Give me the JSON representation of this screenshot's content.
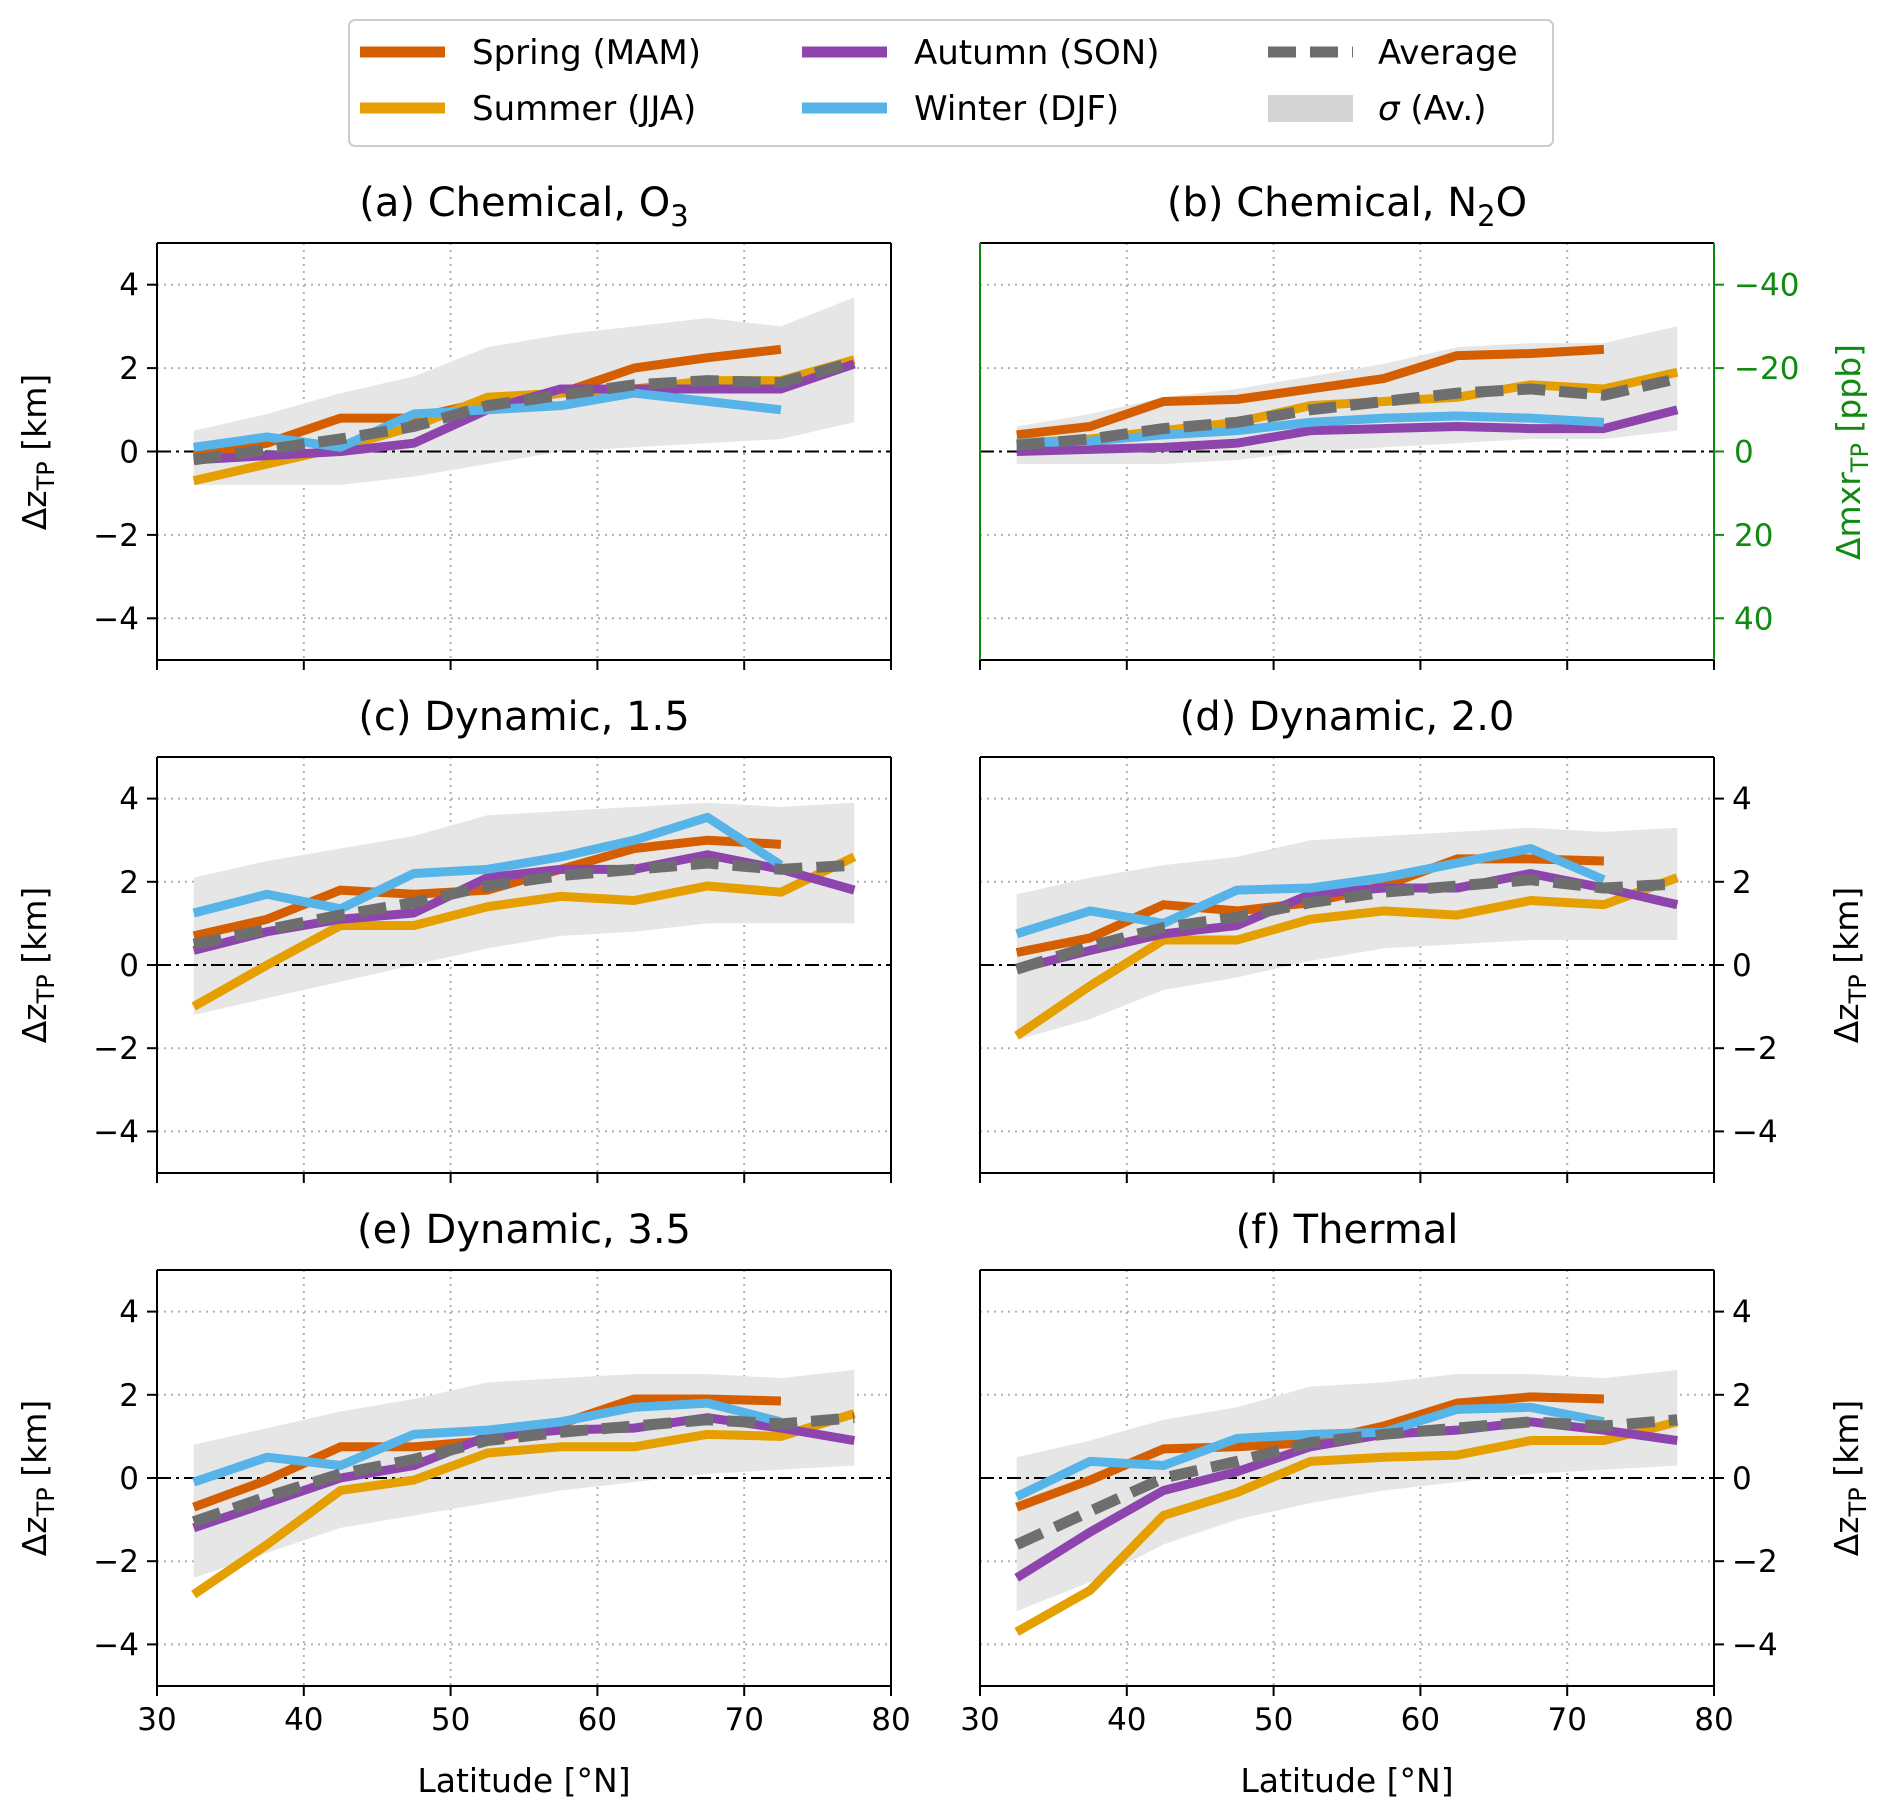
{
  "colors": {
    "spring": "#d55e00",
    "summer": "#e69f00",
    "autumn": "#8e44ad",
    "winter": "#56b4e9",
    "average": "#6e6e6e",
    "sigma": "#e6e6e6",
    "twin_axis": "#108a10"
  },
  "legend": {
    "spring": "Spring (MAM)",
    "summer": "Summer (JJA)",
    "autumn": "Autumn (SON)",
    "winter": "Winter (DJF)",
    "average": "Average",
    "sigma_symbol": "σ",
    "sigma_rest": " (Av.)"
  },
  "axes_text": {
    "x_label": "Latitude [°N]",
    "y_label_main": "Δz",
    "y_label_sub": "TP",
    "y_label_unit": " [km]",
    "twin_label_main": "Δmxr",
    "twin_label_sub": "TP",
    "twin_label_unit": " [ppb]"
  },
  "chart_data": [
    {
      "id": "a",
      "type": "line",
      "title": "(a) Chemical, O",
      "title_sub": "3",
      "xlim": [
        30,
        80
      ],
      "ylim": [
        -5,
        5
      ],
      "xticks": [
        30,
        40,
        50,
        60,
        70,
        80
      ],
      "yticks": [
        -4,
        -2,
        0,
        2,
        4
      ],
      "x": [
        32.5,
        37.5,
        42.5,
        47.5,
        52.5,
        57.5,
        62.5,
        67.5,
        72.5,
        77.5
      ],
      "series": [
        {
          "name": "Spring (MAM)",
          "key": "spring",
          "values": [
            -0.1,
            0.2,
            0.8,
            0.8,
            1.2,
            1.4,
            2.0,
            2.25,
            2.45,
            null
          ]
        },
        {
          "name": "Summer (JJA)",
          "key": "summer",
          "values": [
            -0.7,
            -0.3,
            0.1,
            0.6,
            1.3,
            1.4,
            1.5,
            1.7,
            1.7,
            2.2
          ]
        },
        {
          "name": "Autumn (SON)",
          "key": "autumn",
          "values": [
            -0.2,
            -0.1,
            0.0,
            0.2,
            1.0,
            1.5,
            1.5,
            1.5,
            1.5,
            2.1
          ]
        },
        {
          "name": "Winter (DJF)",
          "key": "winter",
          "values": [
            0.1,
            0.35,
            0.1,
            0.9,
            1.0,
            1.1,
            1.4,
            1.2,
            1.0,
            null
          ]
        },
        {
          "name": "Average",
          "key": "average",
          "values": [
            -0.2,
            0.05,
            0.3,
            0.6,
            1.1,
            1.35,
            1.6,
            1.7,
            1.65,
            2.15
          ]
        }
      ],
      "sigma_band": {
        "lower": [
          -0.8,
          -0.8,
          -0.8,
          -0.6,
          -0.3,
          0.0,
          0.1,
          0.2,
          0.3,
          0.7
        ],
        "upper": [
          0.5,
          0.9,
          1.4,
          1.8,
          2.5,
          2.8,
          3.0,
          3.2,
          3.0,
          3.7
        ]
      }
    },
    {
      "id": "b",
      "type": "line",
      "title": "(b) Chemical, N",
      "title_sub": "2",
      "title_tail": "O",
      "xlim": [
        30,
        80
      ],
      "ylim": [
        -5,
        5
      ],
      "xticks": [
        30,
        40,
        50,
        60,
        70,
        80
      ],
      "left_ticks_hidden": true,
      "twin_axis": {
        "label": "Δmxr TP [ppb]",
        "ylim": [
          50,
          -50
        ],
        "ticks": [
          -40,
          -20,
          0,
          20,
          40
        ],
        "tick_labels": [
          "−40",
          "−20",
          "0",
          "20",
          "40"
        ]
      },
      "x": [
        32.5,
        37.5,
        42.5,
        47.5,
        52.5,
        57.5,
        62.5,
        67.5,
        72.5,
        77.5
      ],
      "series": [
        {
          "name": "Spring (MAM)",
          "key": "spring",
          "values": [
            0.4,
            0.6,
            1.2,
            1.25,
            1.5,
            1.75,
            2.3,
            2.35,
            2.45,
            null
          ]
        },
        {
          "name": "Summer (JJA)",
          "key": "summer",
          "values": [
            0.2,
            0.3,
            0.5,
            0.7,
            1.1,
            1.2,
            1.3,
            1.6,
            1.5,
            1.9
          ]
        },
        {
          "name": "Autumn (SON)",
          "key": "autumn",
          "values": [
            0.0,
            0.05,
            0.1,
            0.2,
            0.5,
            0.55,
            0.6,
            0.55,
            0.55,
            1.0
          ]
        },
        {
          "name": "Winter (DJF)",
          "key": "winter",
          "values": [
            0.2,
            0.25,
            0.4,
            0.5,
            0.7,
            0.8,
            0.85,
            0.8,
            0.7,
            null
          ]
        },
        {
          "name": "Average",
          "key": "average",
          "values": [
            0.15,
            0.3,
            0.55,
            0.7,
            1.0,
            1.2,
            1.4,
            1.5,
            1.35,
            1.75
          ]
        }
      ],
      "sigma_band": {
        "lower": [
          -0.3,
          -0.3,
          -0.3,
          -0.2,
          0.0,
          0.1,
          0.2,
          0.3,
          0.3,
          0.5
        ],
        "upper": [
          0.6,
          0.9,
          1.3,
          1.5,
          1.8,
          2.1,
          2.5,
          2.6,
          2.6,
          3.0
        ]
      }
    },
    {
      "id": "c",
      "type": "line",
      "title": "(c) Dynamic, 1.5",
      "xlim": [
        30,
        80
      ],
      "ylim": [
        -5,
        5
      ],
      "xticks": [
        30,
        40,
        50,
        60,
        70,
        80
      ],
      "yticks": [
        -4,
        -2,
        0,
        2,
        4
      ],
      "x": [
        32.5,
        37.5,
        42.5,
        47.5,
        52.5,
        57.5,
        62.5,
        67.5,
        72.5,
        77.5
      ],
      "series": [
        {
          "name": "Spring (MAM)",
          "key": "spring",
          "values": [
            0.7,
            1.1,
            1.8,
            1.7,
            1.8,
            2.3,
            2.8,
            3.0,
            2.9,
            null
          ]
        },
        {
          "name": "Summer (JJA)",
          "key": "summer",
          "values": [
            -1.0,
            0.0,
            0.95,
            0.95,
            1.4,
            1.65,
            1.55,
            1.9,
            1.75,
            2.6
          ]
        },
        {
          "name": "Autumn (SON)",
          "key": "autumn",
          "values": [
            0.35,
            0.8,
            1.1,
            1.25,
            2.1,
            2.3,
            2.3,
            2.65,
            2.3,
            1.8
          ]
        },
        {
          "name": "Winter (DJF)",
          "key": "winter",
          "values": [
            1.25,
            1.7,
            1.35,
            2.2,
            2.3,
            2.6,
            3.0,
            3.55,
            2.4,
            null
          ]
        },
        {
          "name": "Average",
          "key": "average",
          "values": [
            0.5,
            0.85,
            1.2,
            1.5,
            1.9,
            2.15,
            2.3,
            2.45,
            2.3,
            2.4
          ]
        }
      ],
      "sigma_band": {
        "lower": [
          -1.2,
          -0.8,
          -0.4,
          0.0,
          0.4,
          0.7,
          0.8,
          1.0,
          1.0,
          1.0
        ],
        "upper": [
          2.1,
          2.5,
          2.8,
          3.1,
          3.6,
          3.7,
          3.8,
          3.9,
          3.8,
          3.9
        ]
      }
    },
    {
      "id": "d",
      "type": "line",
      "title": "(d) Dynamic, 2.0",
      "xlim": [
        30,
        80
      ],
      "ylim": [
        -5,
        5
      ],
      "xticks": [
        30,
        40,
        50,
        60,
        70,
        80
      ],
      "yticks": [
        -4,
        -2,
        0,
        2,
        4
      ],
      "right_ticks": true,
      "x": [
        32.5,
        37.5,
        42.5,
        47.5,
        52.5,
        57.5,
        62.5,
        67.5,
        72.5,
        77.5
      ],
      "series": [
        {
          "name": "Spring (MAM)",
          "key": "spring",
          "values": [
            0.3,
            0.65,
            1.45,
            1.3,
            1.5,
            1.9,
            2.55,
            2.55,
            2.5,
            null
          ]
        },
        {
          "name": "Summer (JJA)",
          "key": "summer",
          "values": [
            -1.7,
            -0.5,
            0.6,
            0.6,
            1.1,
            1.3,
            1.2,
            1.55,
            1.45,
            2.1
          ]
        },
        {
          "name": "Autumn (SON)",
          "key": "autumn",
          "values": [
            -0.1,
            0.35,
            0.75,
            0.95,
            1.7,
            1.85,
            1.85,
            2.2,
            1.85,
            1.45
          ]
        },
        {
          "name": "Winter (DJF)",
          "key": "winter",
          "values": [
            0.75,
            1.3,
            1.0,
            1.8,
            1.85,
            2.1,
            2.45,
            2.8,
            2.05,
            null
          ]
        },
        {
          "name": "Average",
          "key": "average",
          "values": [
            -0.1,
            0.45,
            0.9,
            1.15,
            1.5,
            1.75,
            1.9,
            2.05,
            1.85,
            1.95
          ]
        }
      ],
      "sigma_band": {
        "lower": [
          -1.8,
          -1.3,
          -0.6,
          -0.3,
          0.1,
          0.4,
          0.5,
          0.6,
          0.6,
          0.6
        ],
        "upper": [
          1.7,
          2.1,
          2.4,
          2.6,
          3.0,
          3.1,
          3.2,
          3.3,
          3.2,
          3.3
        ]
      }
    },
    {
      "id": "e",
      "type": "line",
      "title": "(e) Dynamic, 3.5",
      "xlim": [
        30,
        80
      ],
      "ylim": [
        -5,
        5
      ],
      "xticks": [
        30,
        40,
        50,
        60,
        70,
        80
      ],
      "yticks": [
        -4,
        -2,
        0,
        2,
        4
      ],
      "x": [
        32.5,
        37.5,
        42.5,
        47.5,
        52.5,
        57.5,
        62.5,
        67.5,
        72.5,
        77.5
      ],
      "series": [
        {
          "name": "Spring (MAM)",
          "key": "spring",
          "values": [
            -0.7,
            -0.05,
            0.75,
            0.75,
            0.9,
            1.3,
            1.9,
            1.9,
            1.85,
            null
          ]
        },
        {
          "name": "Summer (JJA)",
          "key": "summer",
          "values": [
            -2.8,
            -1.6,
            -0.3,
            -0.05,
            0.6,
            0.75,
            0.75,
            1.05,
            1.0,
            1.55
          ]
        },
        {
          "name": "Autumn (SON)",
          "key": "autumn",
          "values": [
            -1.2,
            -0.6,
            0.0,
            0.3,
            1.0,
            1.15,
            1.2,
            1.45,
            1.2,
            0.9
          ]
        },
        {
          "name": "Winter (DJF)",
          "key": "winter",
          "values": [
            -0.1,
            0.5,
            0.3,
            1.05,
            1.15,
            1.35,
            1.7,
            1.8,
            1.35,
            null
          ]
        },
        {
          "name": "Average",
          "key": "average",
          "values": [
            -1.05,
            -0.45,
            0.1,
            0.45,
            0.9,
            1.1,
            1.25,
            1.4,
            1.3,
            1.45
          ]
        }
      ],
      "sigma_band": {
        "lower": [
          -2.4,
          -1.8,
          -1.2,
          -0.9,
          -0.6,
          -0.3,
          -0.1,
          0.1,
          0.2,
          0.3
        ],
        "upper": [
          0.8,
          1.2,
          1.6,
          1.9,
          2.3,
          2.4,
          2.5,
          2.5,
          2.4,
          2.6
        ]
      }
    },
    {
      "id": "f",
      "type": "line",
      "title": "(f) Thermal",
      "xlim": [
        30,
        80
      ],
      "ylim": [
        -5,
        5
      ],
      "xticks": [
        30,
        40,
        50,
        60,
        70,
        80
      ],
      "yticks": [
        -4,
        -2,
        0,
        2,
        4
      ],
      "right_ticks": true,
      "x": [
        32.5,
        37.5,
        42.5,
        47.5,
        52.5,
        57.5,
        62.5,
        67.5,
        72.5,
        77.5
      ],
      "series": [
        {
          "name": "Spring (MAM)",
          "key": "spring",
          "values": [
            -0.7,
            -0.05,
            0.7,
            0.75,
            0.85,
            1.25,
            1.8,
            1.95,
            1.9,
            null
          ]
        },
        {
          "name": "Summer (JJA)",
          "key": "summer",
          "values": [
            -3.7,
            -2.7,
            -0.9,
            -0.35,
            0.4,
            0.5,
            0.55,
            0.9,
            0.9,
            1.35
          ]
        },
        {
          "name": "Autumn (SON)",
          "key": "autumn",
          "values": [
            -2.4,
            -1.3,
            -0.3,
            0.15,
            0.75,
            1.05,
            1.15,
            1.35,
            1.15,
            0.9
          ]
        },
        {
          "name": "Winter (DJF)",
          "key": "winter",
          "values": [
            -0.45,
            0.4,
            0.3,
            0.95,
            1.05,
            1.1,
            1.65,
            1.7,
            1.35,
            null
          ]
        },
        {
          "name": "Average",
          "key": "average",
          "values": [
            -1.6,
            -0.8,
            0.0,
            0.4,
            0.85,
            1.05,
            1.2,
            1.35,
            1.25,
            1.4
          ]
        }
      ],
      "sigma_band": {
        "lower": [
          -3.2,
          -2.5,
          -1.6,
          -1.0,
          -0.6,
          -0.3,
          -0.1,
          0.1,
          0.2,
          0.3
        ],
        "upper": [
          0.5,
          0.9,
          1.4,
          1.7,
          2.2,
          2.3,
          2.5,
          2.5,
          2.4,
          2.6
        ]
      }
    }
  ]
}
